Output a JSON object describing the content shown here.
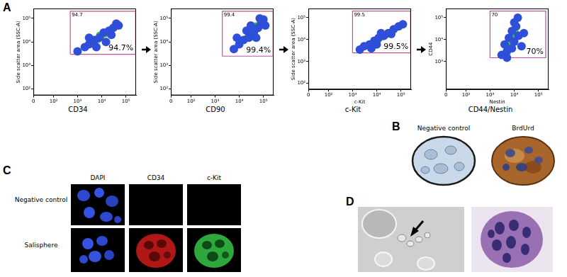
{
  "panel_letters": [
    "A",
    "B",
    "C",
    "D"
  ],
  "chart_data": [
    {
      "type": "scatter",
      "y_label": "Side scatter area (SSC-A)",
      "caption": "CD34",
      "log": true,
      "grid": false,
      "xlim": [
        0,
        262144
      ],
      "ylim": [
        50,
        262144
      ],
      "xticks": [
        0,
        {
          "value": 100,
          "label": "10²"
        },
        {
          "value": 1000,
          "label": "10³"
        },
        {
          "value": 10000,
          "label": "10⁴"
        },
        {
          "value": 100000,
          "label": "10⁵"
        }
      ],
      "yticks": [
        {
          "value": 100,
          "label": "10²"
        },
        {
          "value": 1000,
          "label": "10³"
        },
        {
          "value": 10000,
          "label": "10⁴"
        },
        {
          "value": 100000,
          "label": "10⁵"
        }
      ],
      "gate": {
        "x": [
          500,
          250000
        ],
        "y": [
          3000,
          200000
        ],
        "color": "#c0509a"
      },
      "annotations": [
        "94.7",
        "94.7%"
      ],
      "series": [
        {
          "color": "#2f4fd8",
          "x": [
            1000,
            2000,
            3000,
            5000,
            8000,
            12000,
            20000,
            30000,
            40000,
            6000,
            15000,
            3000,
            25000,
            50000
          ],
          "y": [
            4000,
            6000,
            8000,
            12000,
            15000,
            25000,
            30000,
            40000,
            60000,
            6000,
            10000,
            15000,
            20000,
            50000
          ]
        },
        {
          "color": "#33c04a",
          "x": [
            4000,
            7000,
            10000,
            15000,
            20000,
            8000
          ],
          "y": [
            9000,
            12000,
            18000,
            22000,
            25000,
            20000
          ]
        },
        {
          "color": "#f2d81c",
          "x": [
            10000,
            14000,
            18000
          ],
          "y": [
            15000,
            20000,
            22000
          ]
        },
        {
          "color": "#e8301c",
          "x": [
            14000,
            16000
          ],
          "y": [
            19000,
            21000
          ]
        }
      ]
    },
    {
      "type": "scatter",
      "y_label": "Side scatter area (SSC-A)",
      "caption": "CD90",
      "log": true,
      "grid": false,
      "xlim": [
        0,
        262144
      ],
      "ylim": [
        50,
        262144
      ],
      "xticks": [
        0,
        {
          "value": 100,
          "label": "10²"
        },
        {
          "value": 1000,
          "label": "10³"
        },
        {
          "value": 10000,
          "label": "10⁴"
        },
        {
          "value": 100000,
          "label": "10⁵"
        }
      ],
      "yticks": [
        {
          "value": 100,
          "label": "10²"
        },
        {
          "value": 1000,
          "label": "10³"
        },
        {
          "value": 10000,
          "label": "10⁴"
        },
        {
          "value": 100000,
          "label": "10⁵"
        }
      ],
      "gate": {
        "x": [
          2000,
          250000
        ],
        "y": [
          2500,
          200000
        ],
        "color": "#c0509a"
      },
      "annotations": [
        "99.4",
        "99.4%"
      ],
      "series": [
        {
          "color": "#2f4fd8",
          "x": [
            6000,
            10000,
            15000,
            25000,
            40000,
            60000,
            80000,
            100000,
            20000,
            50000,
            30000,
            120000,
            8000,
            70000
          ],
          "y": [
            5000,
            8000,
            12000,
            15000,
            25000,
            40000,
            60000,
            90000,
            30000,
            15000,
            50000,
            50000,
            15000,
            100000
          ]
        },
        {
          "color": "#33c04a",
          "x": [
            20000,
            30000,
            45000,
            60000,
            35000,
            50000
          ],
          "y": [
            15000,
            20000,
            30000,
            35000,
            35000,
            50000
          ]
        },
        {
          "color": "#f2d81c",
          "x": [
            35000,
            45000,
            55000
          ],
          "y": [
            25000,
            30000,
            35000
          ]
        },
        {
          "color": "#e8301c",
          "x": [
            42000,
            48000
          ],
          "y": [
            28000,
            32000
          ]
        }
      ]
    },
    {
      "type": "scatter",
      "y_label": "Side scatter area (SSC-A)",
      "x_label": "c-Kit",
      "caption": "c-Kit",
      "log": true,
      "grid": false,
      "xlim": [
        0,
        262144
      ],
      "ylim": [
        50,
        262144
      ],
      "xticks": [
        0,
        {
          "value": 100,
          "label": "10²"
        },
        {
          "value": 1000,
          "label": "10³"
        },
        {
          "value": 10000,
          "label": "10⁴"
        },
        {
          "value": 100000,
          "label": "10⁵"
        }
      ],
      "yticks": [
        {
          "value": 100,
          "label": "10²"
        },
        {
          "value": 1000,
          "label": "10³"
        },
        {
          "value": 10000,
          "label": "10⁴"
        },
        {
          "value": 100000,
          "label": "10⁵"
        }
      ],
      "gate": {
        "x": [
          1000,
          250000
        ],
        "y": [
          2500,
          200000
        ],
        "color": "#c0509a"
      },
      "annotations": [
        "99.5",
        "99.5%"
      ],
      "series": [
        {
          "color": "#2f4fd8",
          "x": [
            2000,
            3000,
            5000,
            8000,
            12000,
            20000,
            30000,
            50000,
            80000,
            120000,
            6000,
            15000,
            40000,
            10000
          ],
          "y": [
            3500,
            5000,
            6000,
            9000,
            12000,
            15000,
            20000,
            30000,
            40000,
            50000,
            4000,
            20000,
            18000,
            6000
          ]
        },
        {
          "color": "#33c04a",
          "x": [
            8000,
            12000,
            18000,
            25000,
            35000
          ],
          "y": [
            7000,
            10000,
            13000,
            17000,
            22000
          ]
        },
        {
          "color": "#f2d81c",
          "x": [
            15000,
            20000,
            25000
          ],
          "y": [
            12000,
            14000,
            16000
          ]
        },
        {
          "color": "#e8301c",
          "x": [
            18000,
            21000
          ],
          "y": [
            13000,
            14500
          ]
        }
      ]
    },
    {
      "type": "scatter",
      "y_label": "CD44",
      "x_label": "Nestin",
      "caption": "CD44/Nestin",
      "log": true,
      "grid": false,
      "xlim": [
        0,
        262144
      ],
      "ylim": [
        50,
        262144
      ],
      "xticks": [
        0,
        {
          "value": 100,
          "label": "10²"
        },
        {
          "value": 1000,
          "label": "10³"
        },
        {
          "value": 10000,
          "label": "10⁴"
        },
        {
          "value": 100000,
          "label": "10⁵"
        }
      ],
      "yticks": [
        {
          "value": 1000,
          "label": "10³"
        },
        {
          "value": 10000,
          "label": "10⁴"
        },
        {
          "value": 100000,
          "label": "10⁵"
        }
      ],
      "gate": {
        "x": [
          1000,
          200000
        ],
        "y": [
          1500,
          200000
        ],
        "color": "#c0509a"
      },
      "annotations": [
        "70",
        "70%"
      ],
      "series": [
        {
          "color": "#2f4fd8",
          "x": [
            3000,
            5000,
            8000,
            4000,
            10000,
            6000,
            15000,
            8000,
            12000,
            10000,
            14000,
            25000,
            5000,
            20000
          ],
          "y": [
            2000,
            3000,
            4000,
            6000,
            8000,
            12000,
            15000,
            25000,
            40000,
            60000,
            100000,
            20000,
            1500,
            5000
          ]
        },
        {
          "color": "#33c04a",
          "x": [
            7000,
            10000,
            9000,
            12000,
            11000
          ],
          "y": [
            6000,
            10000,
            15000,
            20000,
            30000
          ]
        },
        {
          "color": "#f2d81c",
          "x": [
            9000,
            10000,
            11000
          ],
          "y": [
            10000,
            14000,
            18000
          ]
        },
        {
          "color": "#e8301c",
          "x": [
            10000,
            10500
          ],
          "y": [
            12000,
            15000
          ]
        }
      ]
    }
  ],
  "panel_B": {
    "labels": [
      "Negative control",
      "BrdUrd"
    ]
  },
  "panel_C": {
    "columns": [
      "DAPI",
      "CD34",
      "c-Kit"
    ],
    "rows": [
      "Negative control",
      "Salisphere"
    ]
  }
}
